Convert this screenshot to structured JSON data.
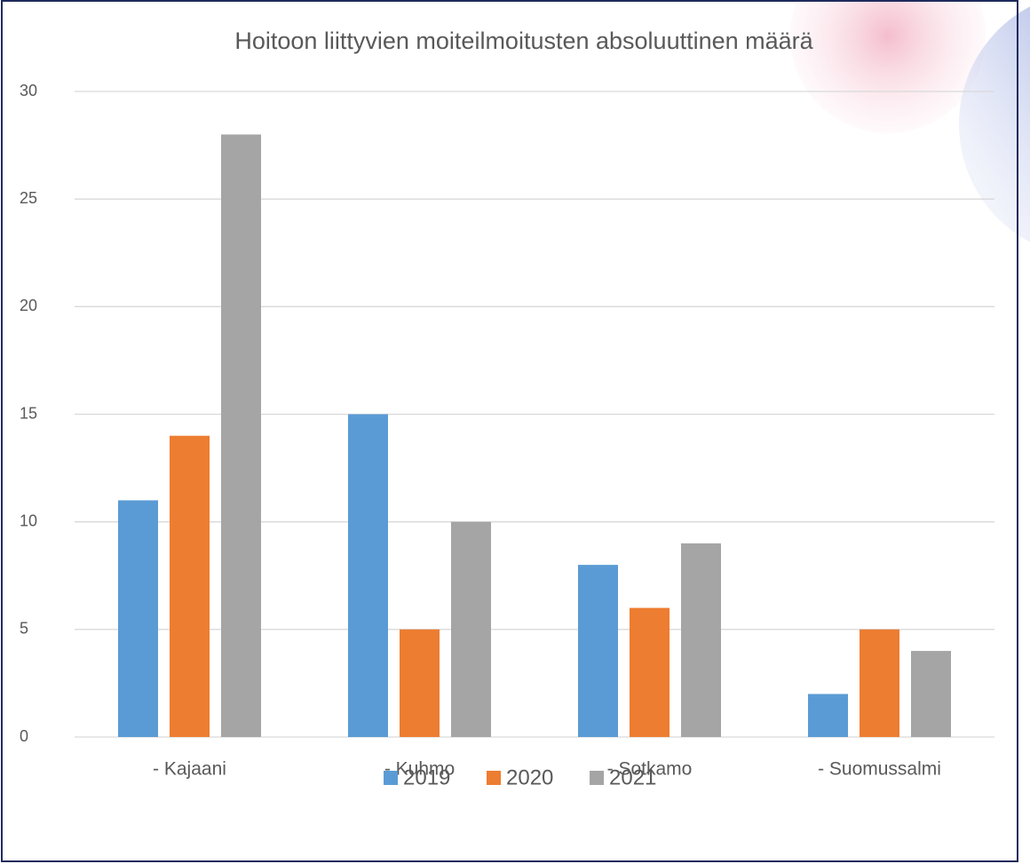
{
  "chart_data": {
    "type": "bar",
    "title": "Hoitoon liittyvien moiteilmoitusten absoluuttinen määrä",
    "categories": [
      "- Kajaani",
      "- Kuhmo",
      "- Sotkamo",
      "- Suomussalmi"
    ],
    "series": [
      {
        "name": "2019",
        "color": "#5b9bd5",
        "values": [
          11,
          15,
          8,
          2
        ]
      },
      {
        "name": "2020",
        "color": "#ed7d31",
        "values": [
          14,
          5,
          6,
          5
        ]
      },
      {
        "name": "2021",
        "color": "#a5a5a5",
        "values": [
          28,
          10,
          9,
          4
        ]
      }
    ],
    "ylim": [
      0,
      30
    ],
    "yticks": [
      0,
      5,
      10,
      15,
      20,
      25,
      30
    ],
    "grid": true,
    "legend": "bottom"
  }
}
